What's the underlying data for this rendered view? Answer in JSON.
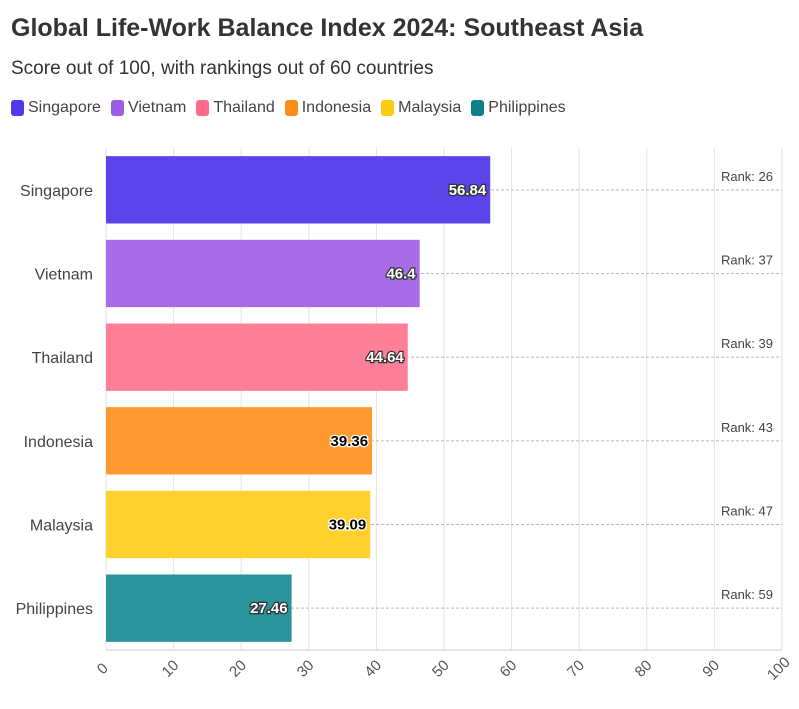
{
  "title": "Global Life-Work Balance Index 2024: Southeast Asia",
  "subtitle": "Score out of 100, with rankings out of 60 countries",
  "legend": [
    {
      "name": "Singapore",
      "color": "#4f3be8"
    },
    {
      "name": "Vietnam",
      "color": "#9b5de5"
    },
    {
      "name": "Thailand",
      "color": "#ff6b8a"
    },
    {
      "name": "Indonesia",
      "color": "#ff8c1a"
    },
    {
      "name": "Malaysia",
      "color": "#ffc914"
    },
    {
      "name": "Philippines",
      "color": "#0b7f8c"
    }
  ],
  "chart_data": {
    "type": "bar",
    "orientation": "horizontal",
    "title": "Global Life-Work Balance Index 2024: Southeast Asia",
    "subtitle": "Score out of 100, with rankings out of 60 countries",
    "categories": [
      "Singapore",
      "Vietnam",
      "Thailand",
      "Indonesia",
      "Malaysia",
      "Philippines"
    ],
    "values": [
      56.84,
      46.4,
      44.64,
      39.36,
      39.09,
      27.46
    ],
    "value_labels": [
      "56.84",
      "46.4",
      "44.64",
      "39.36",
      "39.09",
      "27.46"
    ],
    "rank_labels": [
      "Rank: 26",
      "Rank: 37",
      "Rank: 39",
      "Rank: 43",
      "Rank: 47",
      "Rank: 59"
    ],
    "colors": [
      "#5b45ea",
      "#a86ce6",
      "#ff7f98",
      "#ff9a30",
      "#ffd12c",
      "#2a939b"
    ],
    "label_colors": [
      "#ffffff",
      "#ffffff",
      "#ffffff",
      "#000000",
      "#000000",
      "#ffffff"
    ],
    "xlim": [
      0,
      100
    ],
    "xticks": [
      0,
      10,
      20,
      30,
      40,
      50,
      60,
      70,
      80,
      90,
      100
    ],
    "xtick_labels": [
      "0",
      "10",
      "20",
      "30",
      "40",
      "50",
      "60",
      "70",
      "80",
      "90",
      "100"
    ],
    "grid": true,
    "legend_position": "top-left"
  }
}
